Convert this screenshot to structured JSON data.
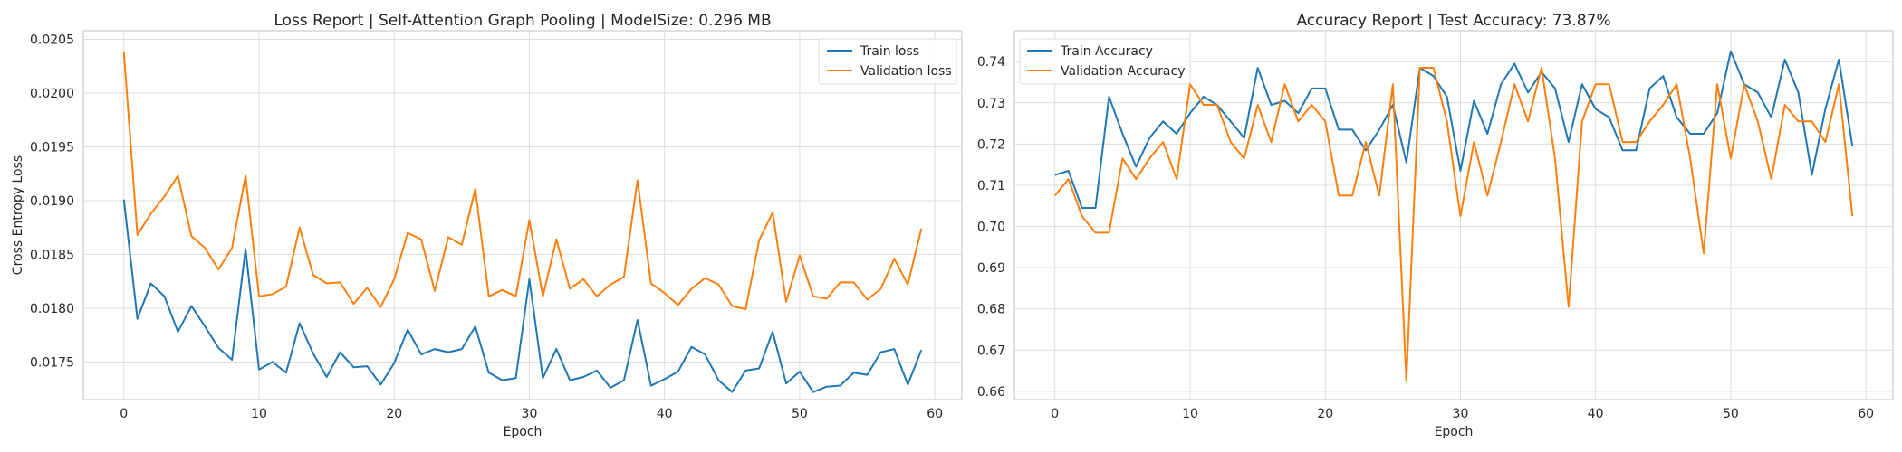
{
  "colors": {
    "train": "#1f77b4",
    "validation": "#ff7f0e"
  },
  "chart_data": [
    {
      "type": "line",
      "title": "Loss Report | Self-Attention Graph Pooling | ModelSize: 0.296 MB",
      "xlabel": "Epoch",
      "ylabel": "Cross Entropy Loss",
      "xlim": [
        -3,
        62
      ],
      "ylim": [
        0.01715,
        0.02058
      ],
      "xticks": [
        0,
        10,
        20,
        30,
        40,
        50,
        60
      ],
      "yticks": [
        0.0175,
        0.018,
        0.0185,
        0.019,
        0.0195,
        0.02,
        0.0205
      ],
      "ytick_labels": [
        "0.0175",
        "0.0180",
        "0.0185",
        "0.0190",
        "0.0195",
        "0.0200",
        "0.0205"
      ],
      "grid": true,
      "legend_position": "top-right",
      "x": [
        0,
        1,
        2,
        3,
        4,
        5,
        6,
        7,
        8,
        9,
        10,
        11,
        12,
        13,
        14,
        15,
        16,
        17,
        18,
        19,
        20,
        21,
        22,
        23,
        24,
        25,
        26,
        27,
        28,
        29,
        30,
        31,
        32,
        33,
        34,
        35,
        36,
        37,
        38,
        39,
        40,
        41,
        42,
        43,
        44,
        45,
        46,
        47,
        48,
        49,
        50,
        51,
        52,
        53,
        54,
        55,
        56,
        57,
        58,
        59
      ],
      "series": [
        {
          "name": "Train loss",
          "color_key": "train",
          "values": [
            0.01901,
            0.0179,
            0.01823,
            0.01811,
            0.01778,
            0.01802,
            0.01783,
            0.01763,
            0.01752,
            0.01855,
            0.01743,
            0.0175,
            0.0174,
            0.01786,
            0.01758,
            0.01736,
            0.01759,
            0.01745,
            0.01746,
            0.01729,
            0.01749,
            0.0178,
            0.01757,
            0.01762,
            0.01759,
            0.01762,
            0.01783,
            0.0174,
            0.01733,
            0.01735,
            0.01827,
            0.01735,
            0.01762,
            0.01733,
            0.01736,
            0.01742,
            0.01726,
            0.01733,
            0.01789,
            0.01728,
            0.01734,
            0.01741,
            0.01764,
            0.01757,
            0.01733,
            0.01722,
            0.01742,
            0.01744,
            0.01778,
            0.0173,
            0.01741,
            0.01722,
            0.01727,
            0.01728,
            0.0174,
            0.01738,
            0.01759,
            0.01762,
            0.01729,
            0.01761
          ]
        },
        {
          "name": "Validation loss",
          "color_key": "validation",
          "values": [
            0.02038,
            0.01868,
            0.01888,
            0.01904,
            0.01923,
            0.01867,
            0.01856,
            0.01836,
            0.01856,
            0.01923,
            0.01811,
            0.01813,
            0.0182,
            0.01875,
            0.01831,
            0.01823,
            0.01824,
            0.01804,
            0.01819,
            0.01801,
            0.01827,
            0.0187,
            0.01864,
            0.01816,
            0.01866,
            0.01859,
            0.01911,
            0.01811,
            0.01817,
            0.01811,
            0.01882,
            0.01811,
            0.01864,
            0.01818,
            0.01827,
            0.01811,
            0.01822,
            0.01829,
            0.01919,
            0.01823,
            0.01814,
            0.01803,
            0.01818,
            0.01828,
            0.01822,
            0.01802,
            0.01799,
            0.01863,
            0.01889,
            0.01806,
            0.01849,
            0.01811,
            0.01809,
            0.01824,
            0.01824,
            0.01808,
            0.01818,
            0.01846,
            0.01822,
            0.01874
          ]
        }
      ]
    },
    {
      "type": "line",
      "title": "Accuracy Report | Test Accuracy: 73.87%",
      "xlabel": "Epoch",
      "ylabel": "",
      "xlim": [
        -3,
        62
      ],
      "ylim": [
        0.658,
        0.7475
      ],
      "xticks": [
        0,
        10,
        20,
        30,
        40,
        50,
        60
      ],
      "yticks": [
        0.66,
        0.67,
        0.68,
        0.69,
        0.7,
        0.71,
        0.72,
        0.73,
        0.74
      ],
      "ytick_labels": [
        "0.66",
        "0.67",
        "0.68",
        "0.69",
        "0.70",
        "0.71",
        "0.72",
        "0.73",
        "0.74"
      ],
      "grid": true,
      "legend_position": "top-left",
      "x": [
        0,
        1,
        2,
        3,
        4,
        5,
        6,
        7,
        8,
        9,
        10,
        11,
        12,
        13,
        14,
        15,
        16,
        17,
        18,
        19,
        20,
        21,
        22,
        23,
        24,
        25,
        26,
        27,
        28,
        29,
        30,
        31,
        32,
        33,
        34,
        35,
        36,
        37,
        38,
        39,
        40,
        41,
        42,
        43,
        44,
        45,
        46,
        47,
        48,
        49,
        50,
        51,
        52,
        53,
        54,
        55,
        56,
        57,
        58,
        59
      ],
      "series": [
        {
          "name": "Train Accuracy",
          "color_key": "train",
          "values": [
            0.7125,
            0.7135,
            0.7045,
            0.7045,
            0.7315,
            0.7225,
            0.7145,
            0.7215,
            0.7255,
            0.7225,
            0.7275,
            0.7315,
            0.7295,
            0.7255,
            0.7215,
            0.7385,
            0.7295,
            0.7305,
            0.7275,
            0.7335,
            0.7335,
            0.7235,
            0.7235,
            0.7185,
            0.7235,
            0.7295,
            0.7155,
            0.7385,
            0.7365,
            0.7315,
            0.7135,
            0.7305,
            0.7225,
            0.7345,
            0.7395,
            0.7325,
            0.7375,
            0.7335,
            0.7205,
            0.7345,
            0.7285,
            0.7265,
            0.7185,
            0.7185,
            0.7335,
            0.7365,
            0.7265,
            0.7225,
            0.7225,
            0.7275,
            0.7425,
            0.7345,
            0.7325,
            0.7265,
            0.7405,
            0.7325,
            0.7125,
            0.7285,
            0.7405,
            0.7195
          ]
        },
        {
          "name": "Validation Accuracy",
          "color_key": "validation",
          "values": [
            0.7075,
            0.7115,
            0.7025,
            0.6985,
            0.6985,
            0.7165,
            0.7115,
            0.7165,
            0.7205,
            0.7115,
            0.7345,
            0.7295,
            0.7295,
            0.7205,
            0.7165,
            0.7295,
            0.7205,
            0.7345,
            0.7255,
            0.7295,
            0.7255,
            0.7075,
            0.7075,
            0.7205,
            0.7075,
            0.7345,
            0.6625,
            0.7385,
            0.7385,
            0.7255,
            0.7025,
            0.7205,
            0.7075,
            0.7205,
            0.7345,
            0.7255,
            0.7385,
            0.7165,
            0.6805,
            0.7255,
            0.7345,
            0.7345,
            0.7205,
            0.7205,
            0.7255,
            0.7295,
            0.7345,
            0.7165,
            0.6935,
            0.7345,
            0.7165,
            0.7345,
            0.7255,
            0.7115,
            0.7295,
            0.7255,
            0.7255,
            0.7205,
            0.7345,
            0.7025
          ]
        }
      ]
    }
  ]
}
